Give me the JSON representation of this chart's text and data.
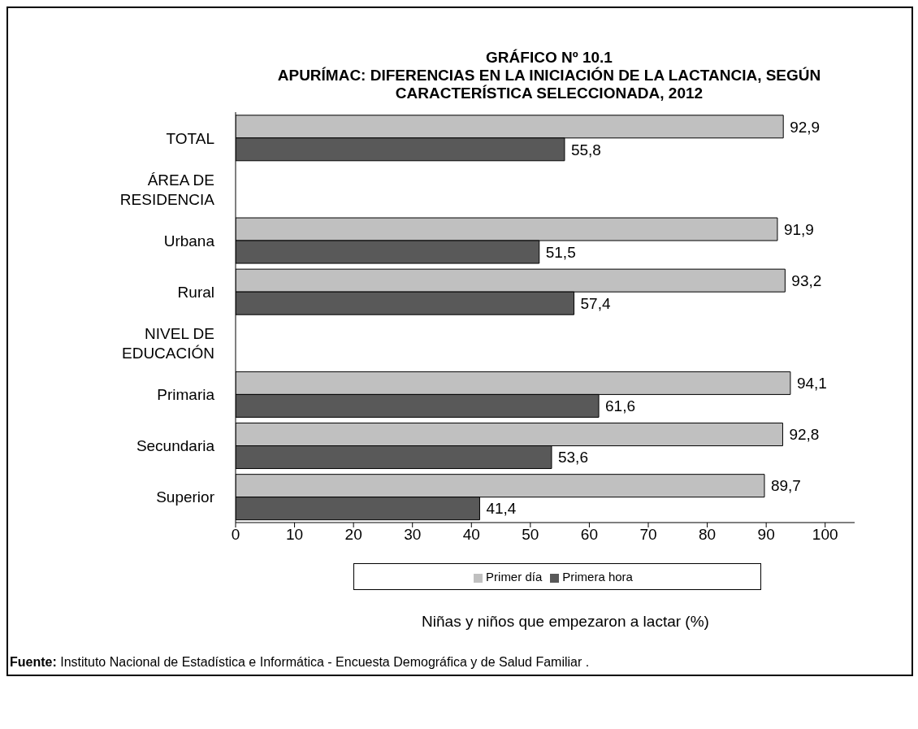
{
  "chart_data": {
    "type": "bar",
    "orientation": "horizontal",
    "title": "GRÁFICO Nº 10.1\nAPURÍMAC: DIFERENCIAS EN LA INICIACIÓN DE LA LACTANCIA, SEGÚN\nCARACTERÍSTICA SELECCIONADA, 2012",
    "xlabel": "Niñas y niños que empezaron a lactar (%)",
    "categories": [
      "TOTAL",
      "ÁREA DE RESIDENCIA",
      "Urbana",
      "Rural",
      "NIVEL DE EDUCACIÓN",
      "Primaria",
      "Secundaria",
      "Superior"
    ],
    "series": [
      {
        "name": "Primer día",
        "color": "#c0c0c0",
        "values": [
          92.9,
          null,
          91.9,
          93.2,
          null,
          94.1,
          92.8,
          89.7
        ],
        "value_labels": [
          "92,9",
          null,
          "91,9",
          "93,2",
          null,
          "94,1",
          "92,8",
          "89,7"
        ]
      },
      {
        "name": "Primera hora",
        "color": "#595959",
        "values": [
          55.8,
          null,
          51.5,
          57.4,
          null,
          61.6,
          53.6,
          41.4
        ],
        "value_labels": [
          "55,8",
          null,
          "51,5",
          "57,4",
          null,
          "61,6",
          "53,6",
          "41,4"
        ]
      }
    ],
    "xlim": [
      0,
      105
    ],
    "xticks": [
      0,
      10,
      20,
      30,
      40,
      50,
      60,
      70,
      80,
      90,
      100
    ],
    "legend": "bottom",
    "annotations": [
      "Fuente: Instituto Nacional de Estadística e Informática - Encuesta Demográfica y de Salud Familiar ."
    ]
  }
}
